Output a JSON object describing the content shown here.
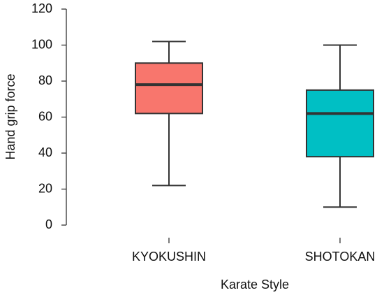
{
  "chart_data": {
    "type": "box",
    "x_label": "Karate Style",
    "y_label": "Hand grip force",
    "categories": [
      "KYOKUSHIN",
      "SHOTOKAN"
    ],
    "boxes": [
      {
        "min": 22,
        "q1": 62,
        "median": 78,
        "q3": 90,
        "max": 102,
        "color": "#f8766d"
      },
      {
        "min": 10,
        "q1": 38,
        "median": 62,
        "q3": 75,
        "max": 100,
        "color": "#00bfc4"
      }
    ],
    "ylim": [
      0,
      120
    ],
    "yticks": [
      0,
      20,
      40,
      60,
      80,
      100,
      120
    ],
    "grid": false
  }
}
